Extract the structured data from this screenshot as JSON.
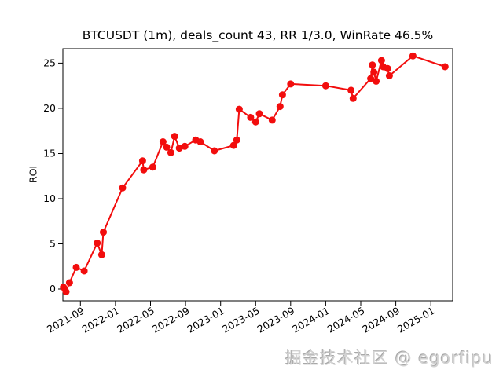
{
  "figure": {
    "background": "#ffffff"
  },
  "watermark": {
    "text": "掘金技术社区 @ egorfipu",
    "color": "#d2d2d2"
  },
  "chart_data": {
    "type": "line",
    "title": "BTCUSDT (1m), deals_count 43, RR 1/3.0, WinRate 46.5%",
    "xlabel": "",
    "ylabel": "ROI",
    "grid": false,
    "legend": "none",
    "marker": "circle",
    "ylim": [
      -1.3,
      26.6
    ],
    "xlim": [
      "2021-07-01",
      "2025-03-16"
    ],
    "yticks": [
      0,
      5,
      10,
      15,
      20,
      25
    ],
    "xticks": [
      "2021-09",
      "2022-01",
      "2022-05",
      "2022-09",
      "2023-01",
      "2023-05",
      "2023-09",
      "2024-01",
      "2024-05",
      "2024-09",
      "2025-01"
    ],
    "xtick_rotation_deg": 30,
    "axis_color": "#000000",
    "series": [
      {
        "name": "ROI",
        "color": "#f20d0d",
        "points": [
          [
            "2021-07-03",
            0.2
          ],
          [
            "2021-07-12",
            -0.3
          ],
          [
            "2021-07-24",
            0.7
          ],
          [
            "2021-08-17",
            2.4
          ],
          [
            "2021-09-14",
            2.0
          ],
          [
            "2021-10-29",
            5.1
          ],
          [
            "2021-11-14",
            3.8
          ],
          [
            "2021-11-20",
            6.3
          ],
          [
            "2022-01-26",
            11.2
          ],
          [
            "2022-04-04",
            14.2
          ],
          [
            "2022-04-08",
            13.2
          ],
          [
            "2022-05-09",
            13.5
          ],
          [
            "2022-06-14",
            16.3
          ],
          [
            "2022-06-27",
            15.7
          ],
          [
            "2022-07-11",
            15.1
          ],
          [
            "2022-07-24",
            16.9
          ],
          [
            "2022-08-10",
            15.6
          ],
          [
            "2022-08-29",
            15.8
          ],
          [
            "2022-10-06",
            16.5
          ],
          [
            "2022-10-22",
            16.3
          ],
          [
            "2022-12-10",
            15.3
          ],
          [
            "2023-02-16",
            15.9
          ],
          [
            "2023-02-27",
            16.5
          ],
          [
            "2023-03-05",
            19.9
          ],
          [
            "2023-04-14",
            19.0
          ],
          [
            "2023-05-01",
            18.5
          ],
          [
            "2023-05-14",
            19.4
          ],
          [
            "2023-06-28",
            18.7
          ],
          [
            "2023-07-25",
            20.2
          ],
          [
            "2023-08-03",
            21.5
          ],
          [
            "2023-09-01",
            22.7
          ],
          [
            "2024-01-01",
            22.5
          ],
          [
            "2024-03-28",
            22.0
          ],
          [
            "2024-04-05",
            21.1
          ],
          [
            "2024-06-05",
            23.3
          ],
          [
            "2024-06-11",
            24.8
          ],
          [
            "2024-06-16",
            24.0
          ],
          [
            "2024-06-24",
            23.0
          ],
          [
            "2024-07-12",
            25.3
          ],
          [
            "2024-07-18",
            24.6
          ],
          [
            "2024-08-03",
            24.4
          ],
          [
            "2024-08-09",
            23.6
          ],
          [
            "2024-10-30",
            25.8
          ],
          [
            "2025-02-20",
            24.6
          ]
        ]
      }
    ]
  }
}
